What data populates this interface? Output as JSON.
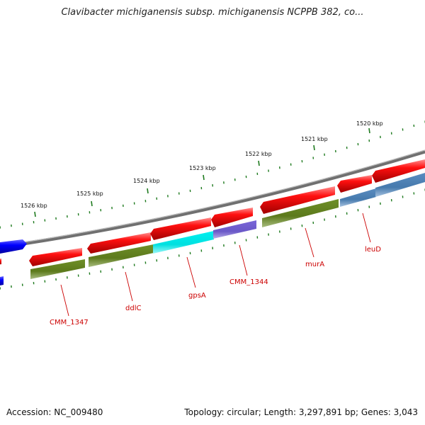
{
  "title": "Clavibacter michiganensis subsp. michiganensis NCPPB 382, co...",
  "footer": {
    "accession": "Accession: NC_009480",
    "summary": "Topology: circular; Length: 3,297,891 bp; Genes: 3,043"
  },
  "tick_labels": [
    "1520 kbp",
    "1521 kbp",
    "1522 kbp",
    "1523 kbp",
    "1524 kbp",
    "1525 kbp",
    "1526 kbp"
  ],
  "gene_labels": [
    "leuD",
    "murA",
    "CMM_1344",
    "gpsA",
    "ddlC",
    "CMM_1347"
  ],
  "colors": {
    "backbone": "#808080",
    "forward_cds": "#ff0000",
    "reverse_default": "#6b8e23",
    "cyan_gene": "#00ffff",
    "purple_gene": "#7b68ee",
    "steelblue_gene": "#4682b4",
    "blue_gene": "#0000ff",
    "tick": "#1e7a1e",
    "label": "#cc0000"
  }
}
